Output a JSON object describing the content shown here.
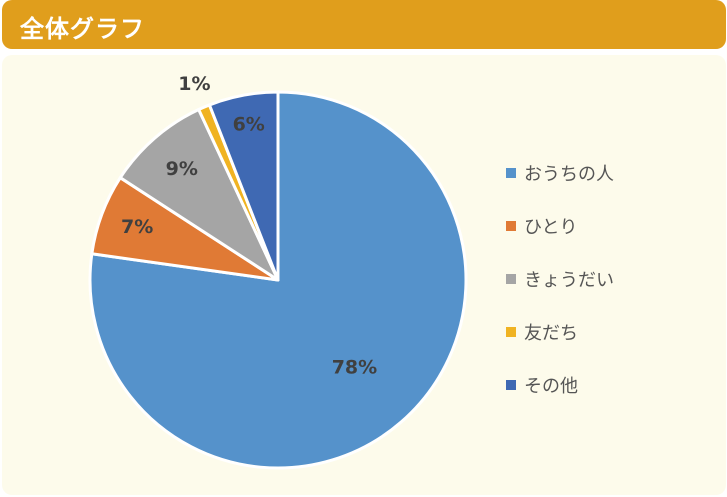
{
  "header": {
    "title": "全体グラフ"
  },
  "chart_data": {
    "type": "pie",
    "categories": [
      "おうちの人",
      "ひとり",
      "きょうだい",
      "友だち",
      "その他"
    ],
    "values": [
      78,
      7,
      9,
      1,
      6
    ],
    "labels": [
      "78%",
      "7%",
      "9%",
      "1%",
      "6%"
    ],
    "colors": [
      "#5592cb",
      "#e07a35",
      "#a5a5a5",
      "#f0b322",
      "#3f69b3"
    ],
    "legend": "right"
  }
}
